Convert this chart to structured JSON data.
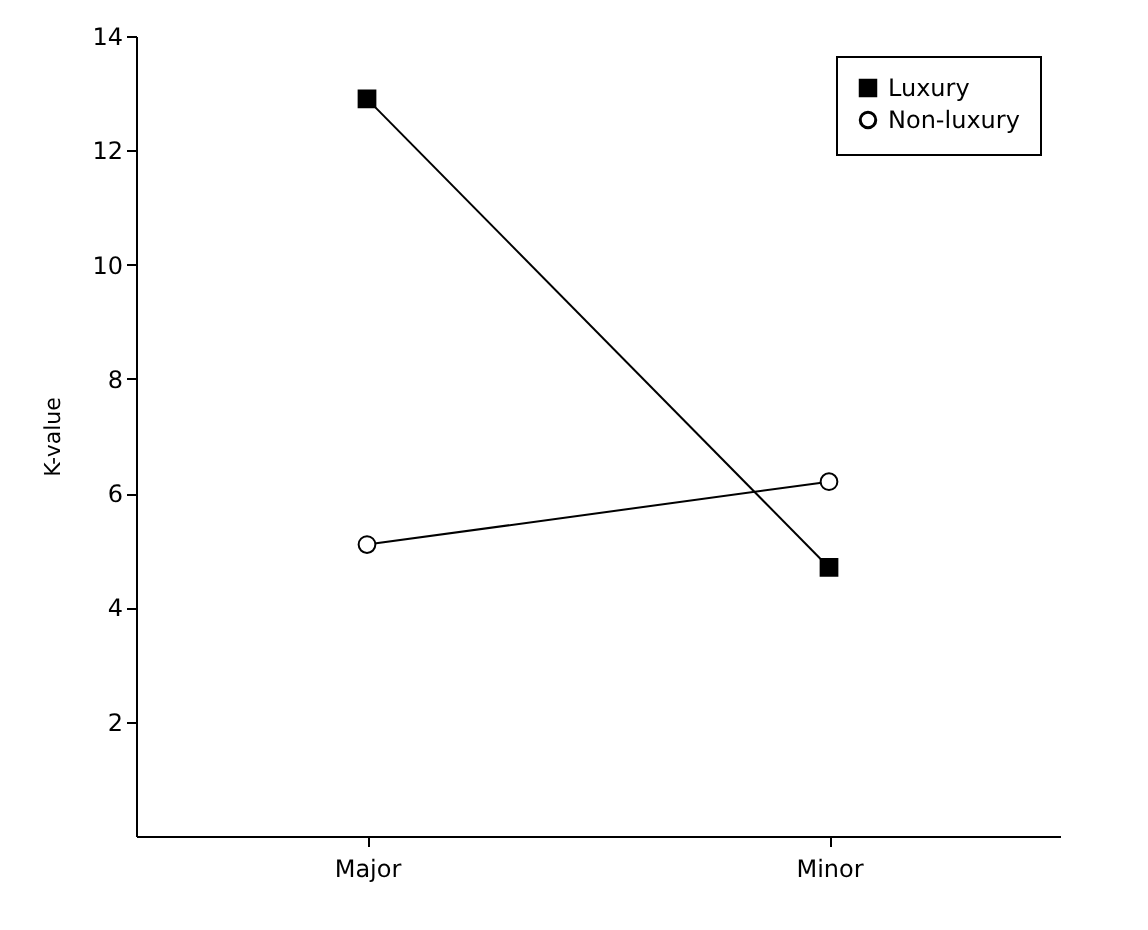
{
  "chart_data": {
    "type": "line",
    "ylabel": "K-value",
    "categories": [
      "Major",
      "Minor"
    ],
    "ylim": [
      0,
      14
    ],
    "yticks": [
      2,
      4,
      6,
      8,
      10,
      12,
      14
    ],
    "grid": false,
    "legend": "top right",
    "series": [
      {
        "name": "Luxury",
        "color": "#000000",
        "marker": "square",
        "values": [
          12.9,
          4.7
        ]
      },
      {
        "name": "Non-luxury",
        "color": "#000000",
        "marker": "circle",
        "values": [
          5.1,
          6.2
        ]
      }
    ]
  }
}
